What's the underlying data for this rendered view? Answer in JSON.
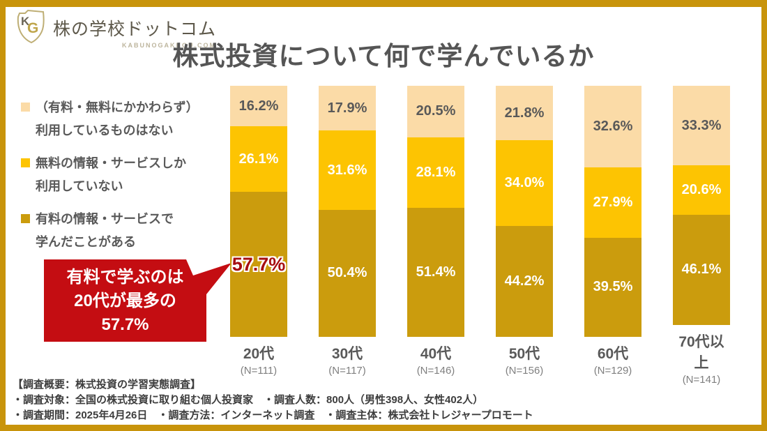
{
  "logo": {
    "brand": "株の学校ドットコム",
    "domain": "KABUNOGAKKOU.COM",
    "monogram_k": "K",
    "monogram_g": "G"
  },
  "title": "株式投資について何で学んでいるか",
  "legend": {
    "items": [
      {
        "color": "#FBDBA7",
        "line1": "（有料・無料にかかわらず）",
        "line2": "利用しているものはない"
      },
      {
        "color": "#FDC402",
        "line1": "無料の情報・サービスしか",
        "line2": "利用していない"
      },
      {
        "color": "#CB9C0D",
        "line1": "有料の情報・サービスで",
        "line2": "学んだことがある"
      }
    ]
  },
  "callout": {
    "line1": "有料で学ぶのは",
    "line2": "20代が最多の",
    "line3": "57.7%",
    "bg_color": "#C40D12"
  },
  "chart_data": {
    "type": "bar",
    "stacked": true,
    "title": "株式投資について何で学んでいるか",
    "categories": [
      "20代",
      "30代",
      "40代",
      "50代",
      "60代",
      "70代以上"
    ],
    "sample_sizes": [
      "(N=111)",
      "(N=117)",
      "(N=146)",
      "(N=156)",
      "(N=129)",
      "(N=141)"
    ],
    "series": [
      {
        "name": "有料の情報・サービスで学んだことがある",
        "color": "#CB9C0D",
        "values": [
          57.7,
          50.4,
          51.4,
          44.2,
          39.5,
          46.1
        ]
      },
      {
        "name": "無料の情報・サービスしか利用していない",
        "color": "#FDC402",
        "values": [
          26.1,
          31.6,
          28.1,
          34.0,
          27.9,
          20.6
        ]
      },
      {
        "name": "（有料・無料にかかわらず）利用しているものはない",
        "color": "#FBDBA7",
        "values": [
          16.2,
          17.9,
          20.5,
          21.8,
          32.6,
          33.3
        ]
      }
    ],
    "value_suffix": "%",
    "ylim": [
      0,
      100
    ],
    "legend_position": "left",
    "grid": false,
    "highlight": {
      "category_index": 0,
      "series_index": 0,
      "label": "57.7%",
      "color": "#A60D10"
    }
  },
  "footer": {
    "line1": "【調査概要：株式投資の学習実態調査】",
    "line2": "・調査対象：全国の株式投資に取り組む個人投資家　・調査人数：800人（男性398人、女性402人）",
    "line3": "・調査期間：2025年4月26日　・調査方法：インターネット調査　・調査主体：株式会社トレジャープロモート"
  },
  "colors": {
    "frame": "#C8940B",
    "title_text": "#555555",
    "label_gray": "#595959",
    "callout_red": "#C40D12",
    "highlight_red": "#A60D10"
  }
}
